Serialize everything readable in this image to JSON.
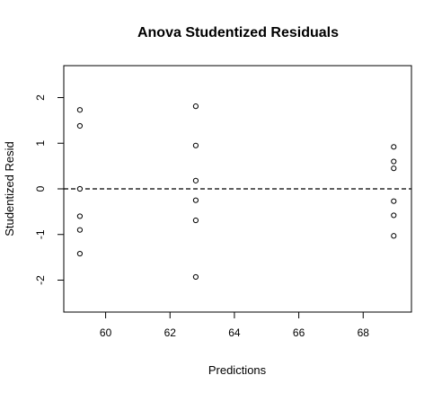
{
  "chart_data": {
    "type": "scatter",
    "title": "Anova Studentized Residuals",
    "xlabel": "Predictions",
    "ylabel": "Studentized Resid",
    "xlim": [
      58.7,
      69.5
    ],
    "ylim": [
      -2.7,
      2.7
    ],
    "x_ticks": [
      60,
      62,
      64,
      66,
      68
    ],
    "y_ticks": [
      -2,
      -1,
      0,
      1,
      2
    ],
    "reference_line": {
      "y": 0,
      "style": "dashed"
    },
    "marker": "open-circle",
    "grid": false,
    "series": [
      {
        "points": [
          {
            "x": 59.2,
            "y": 1.73
          },
          {
            "x": 59.2,
            "y": 1.38
          },
          {
            "x": 59.2,
            "y": 0.0
          },
          {
            "x": 59.2,
            "y": -0.6
          },
          {
            "x": 59.2,
            "y": -0.9
          },
          {
            "x": 59.2,
            "y": -1.42
          },
          {
            "x": 62.8,
            "y": 1.81
          },
          {
            "x": 62.8,
            "y": 0.95
          },
          {
            "x": 62.8,
            "y": 0.18
          },
          {
            "x": 62.8,
            "y": -0.25
          },
          {
            "x": 62.8,
            "y": -0.69
          },
          {
            "x": 62.8,
            "y": -1.93
          },
          {
            "x": 68.95,
            "y": 0.92
          },
          {
            "x": 68.95,
            "y": 0.6
          },
          {
            "x": 68.95,
            "y": 0.45
          },
          {
            "x": 68.95,
            "y": -0.27
          },
          {
            "x": 68.95,
            "y": -0.58
          },
          {
            "x": 68.95,
            "y": -1.03
          }
        ]
      }
    ]
  }
}
